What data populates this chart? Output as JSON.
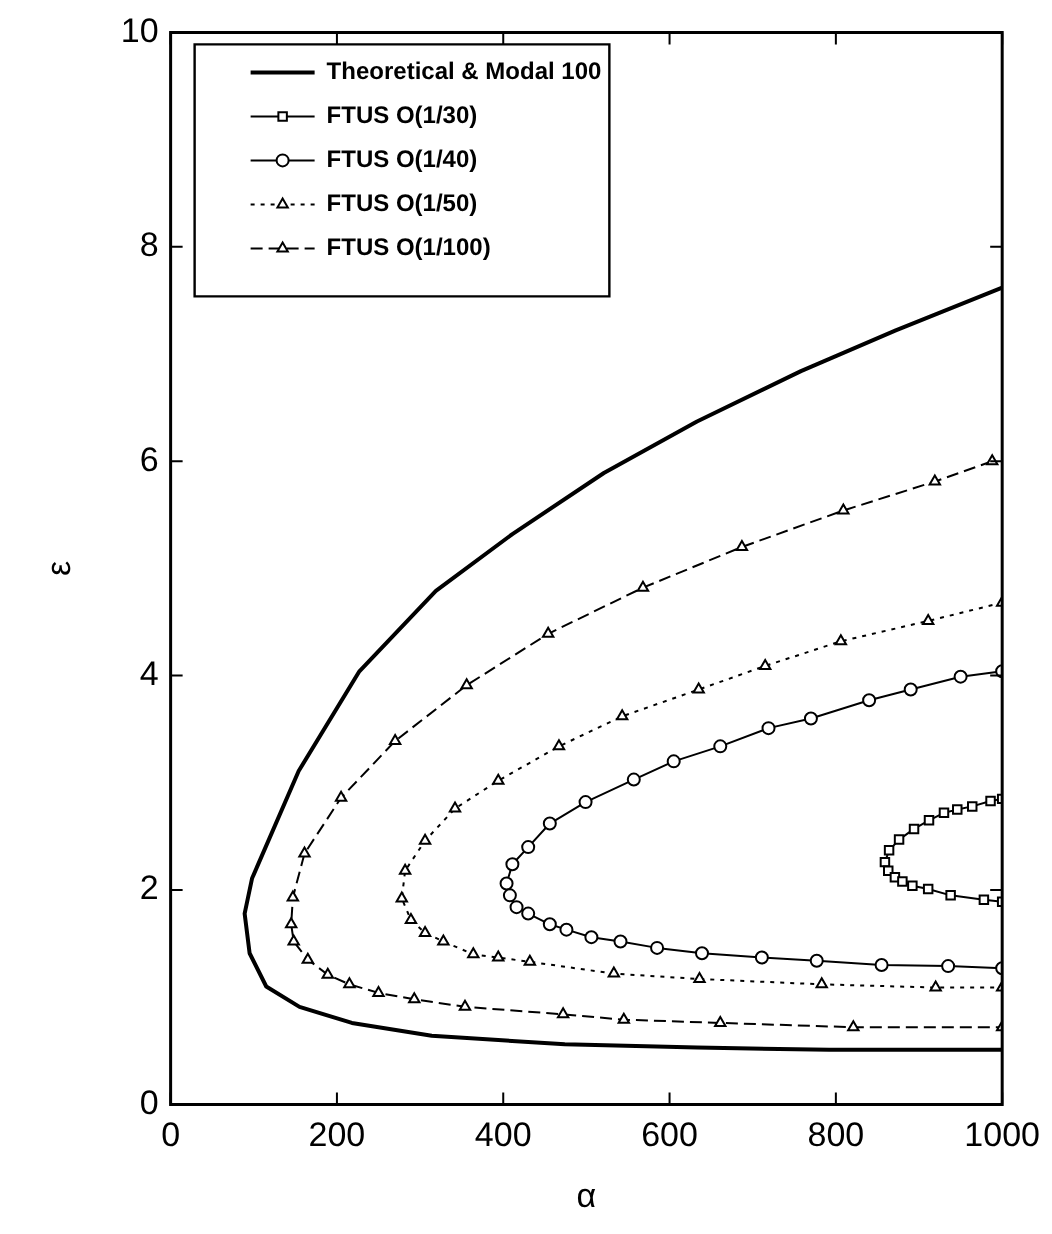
{
  "chart_data": {
    "type": "line",
    "xlabel": "α",
    "ylabel": "ε",
    "xlim": [
      0,
      1000
    ],
    "ylim": [
      0,
      10
    ],
    "xticks": [
      0,
      200,
      400,
      600,
      800,
      1000
    ],
    "yticks": [
      0,
      2,
      4,
      6,
      8,
      10
    ],
    "grid": false,
    "legend": "top left",
    "series": [
      {
        "name": "Theoretical & Modal 100",
        "color": "#000000",
        "marker": "none",
        "line_style": "solid",
        "x": [
          1000,
          872,
          758,
          633,
          521,
          411,
          319,
          227,
          154,
          98,
          89,
          95,
          115,
          155,
          218,
          314,
          474,
          633,
          792,
          1000
        ],
        "values": [
          7.62,
          7.22,
          6.84,
          6.37,
          5.89,
          5.32,
          4.79,
          4.04,
          3.11,
          2.11,
          1.78,
          1.41,
          1.1,
          0.91,
          0.76,
          0.64,
          0.56,
          0.53,
          0.51,
          0.51
        ]
      },
      {
        "name": "FTUS O(1/30)",
        "color": "#000000",
        "marker": "square",
        "line_style": "solid",
        "x": [
          1000,
          986,
          964,
          946,
          930,
          912,
          894,
          876,
          864,
          859,
          863,
          871,
          880,
          892,
          911,
          938,
          978,
          1000
        ],
        "values": [
          2.85,
          2.83,
          2.78,
          2.75,
          2.72,
          2.65,
          2.57,
          2.47,
          2.37,
          2.26,
          2.18,
          2.12,
          2.08,
          2.04,
          2.01,
          1.95,
          1.91,
          1.89
        ]
      },
      {
        "name": "FTUS O(1/40)",
        "color": "#000000",
        "marker": "circle",
        "line_style": "solid",
        "x": [
          1000,
          950,
          890,
          840,
          770,
          719,
          661,
          605,
          557,
          499,
          456,
          430,
          411,
          404,
          408,
          416,
          430,
          456,
          476,
          506,
          541,
          585,
          639,
          711,
          777,
          855,
          935,
          1000
        ],
        "values": [
          4.04,
          3.99,
          3.87,
          3.77,
          3.6,
          3.51,
          3.34,
          3.2,
          3.03,
          2.82,
          2.62,
          2.4,
          2.24,
          2.06,
          1.95,
          1.84,
          1.78,
          1.68,
          1.63,
          1.56,
          1.52,
          1.46,
          1.41,
          1.37,
          1.34,
          1.3,
          1.29,
          1.27
        ]
      },
      {
        "name": "FTUS O(1/50)",
        "color": "#000000",
        "marker": "triangle",
        "line_style": "dotted",
        "x": [
          1000,
          911,
          806,
          715,
          635,
          543,
          467,
          394,
          342,
          306,
          282,
          278,
          289,
          306,
          328,
          364,
          394,
          432,
          533,
          636,
          783,
          920,
          1000
        ],
        "values": [
          4.68,
          4.51,
          4.32,
          4.09,
          3.87,
          3.62,
          3.34,
          3.02,
          2.76,
          2.46,
          2.18,
          1.92,
          1.72,
          1.6,
          1.52,
          1.4,
          1.37,
          1.33,
          1.22,
          1.17,
          1.12,
          1.09,
          1.09
        ]
      },
      {
        "name": "FTUS O(1/100)",
        "color": "#000000",
        "marker": "triangle",
        "line_style": "dashed",
        "x": [
          988,
          919,
          809,
          687,
          568,
          454,
          356,
          270,
          205,
          161,
          147,
          145,
          148,
          165,
          189,
          215,
          250,
          293,
          354,
          472,
          545,
          661,
          821,
          1000
        ],
        "values": [
          6.0,
          5.81,
          5.54,
          5.2,
          4.82,
          4.39,
          3.91,
          3.39,
          2.86,
          2.34,
          1.93,
          1.68,
          1.52,
          1.35,
          1.21,
          1.12,
          1.04,
          0.98,
          0.91,
          0.84,
          0.79,
          0.76,
          0.72,
          0.72
        ]
      }
    ]
  }
}
